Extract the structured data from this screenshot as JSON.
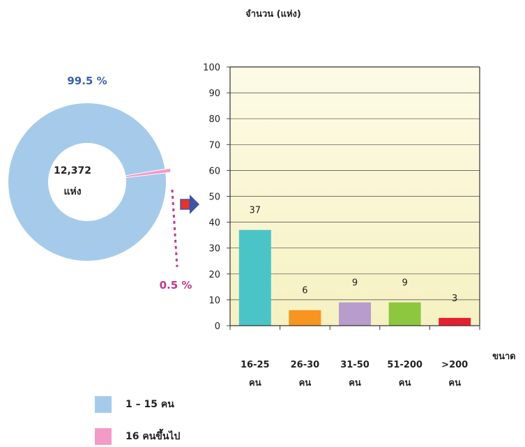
{
  "colors": {
    "donut_large": "#a6cbea",
    "donut_small": "#f49ac8",
    "label_large": "#3c5eaa",
    "label_small": "#c0398c",
    "plot_top": "#fdfbe6",
    "plot_bottom": "#f6f1c2",
    "arrow_fill": "#e8322b",
    "arrow_head": "#3f54a4"
  },
  "donut": {
    "center_value": "12,372",
    "center_unit": "แห่ง",
    "large_pct_label": "99.5 %",
    "small_pct_label": "0.5 %"
  },
  "legend": [
    {
      "label": "1 – 15 คน",
      "color": "#a6cbea"
    },
    {
      "label": "16 คนขึ้นไป",
      "color": "#f49ac8"
    }
  ],
  "chart_data": [
    {
      "type": "pie",
      "categories": [
        "1 – 15 คน",
        "16 คนขึ้นไป"
      ],
      "values": [
        99.5,
        0.5
      ],
      "center_text": "12,372 แห่ง"
    },
    {
      "type": "bar",
      "ylabel": "จำนวน (แห่ง)",
      "xlabel": "ขนาด",
      "ylim": [
        0,
        100
      ],
      "yticks": [
        0,
        10,
        20,
        30,
        40,
        50,
        60,
        70,
        80,
        90,
        100
      ],
      "grid": true,
      "categories": [
        {
          "line1": "16-25",
          "line2": "คน"
        },
        {
          "line1": "26-30",
          "line2": "คน"
        },
        {
          "line1": "31-50",
          "line2": "คน"
        },
        {
          "line1": "51-200",
          "line2": "คน"
        },
        {
          "line1": ">200",
          "line2": "คน"
        }
      ],
      "values": [
        37,
        6,
        9,
        9,
        3
      ],
      "bar_colors": [
        "#4bc4c7",
        "#f6951f",
        "#b89ccb",
        "#8dc63f",
        "#e5202e"
      ]
    }
  ]
}
